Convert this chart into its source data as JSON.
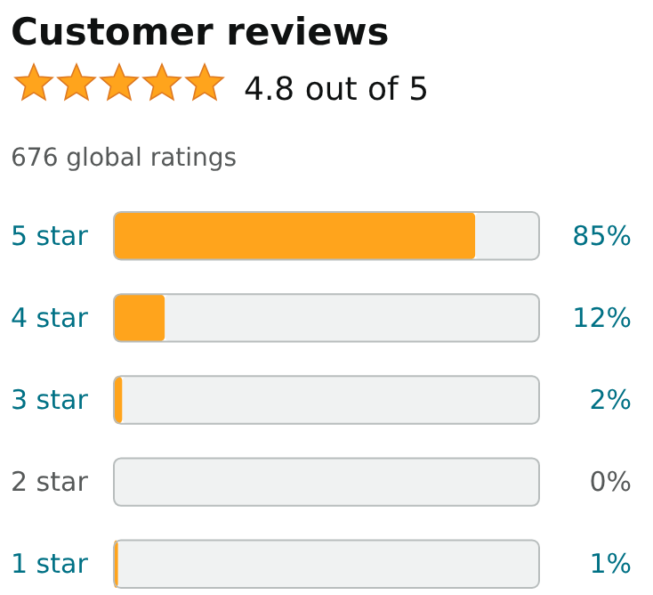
{
  "chart_data": {
    "type": "bar",
    "orientation": "horizontal",
    "stacked": true,
    "title": "Customer reviews",
    "subtitle": "4.8 out of 5",
    "annotations": [
      "676 global ratings"
    ],
    "categories": [
      "5 star",
      "4 star",
      "3 star",
      "2 star",
      "1 star"
    ],
    "series": [
      {
        "color": "#ffa41c",
        "values": [
          85,
          12,
          2,
          0,
          1
        ],
        "value_labels": [
          "85%",
          "12%",
          "2%",
          "0%",
          "1%"
        ]
      },
      {
        "color": "#f0f2f2",
        "values": [
          15,
          88,
          98,
          100,
          99
        ]
      }
    ],
    "xlim": [
      0,
      100
    ]
  }
}
